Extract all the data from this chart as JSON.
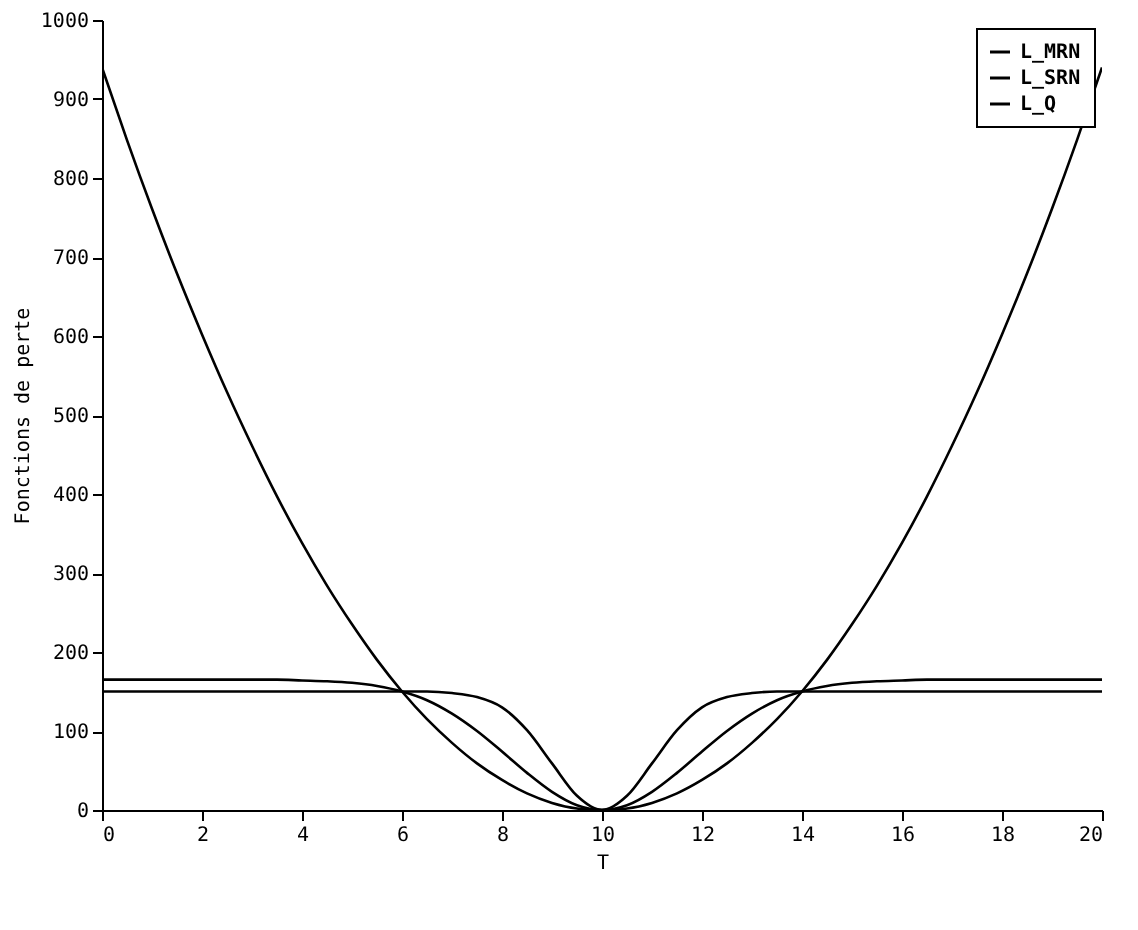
{
  "chart_data": {
    "type": "line",
    "xlabel": "T",
    "ylabel": "Fonctions de perte",
    "x": [
      0,
      0.5,
      1,
      1.5,
      2,
      2.5,
      3,
      3.5,
      4,
      4.5,
      5,
      5.5,
      6,
      6.5,
      7,
      7.5,
      8,
      8.5,
      9,
      9.5,
      10,
      10.5,
      11,
      11.5,
      12,
      12.5,
      13,
      13.5,
      14,
      14.5,
      15,
      15.5,
      16,
      16.5,
      17,
      17.5,
      18,
      18.5,
      19,
      19.5,
      20
    ],
    "series": [
      {
        "name": "L_MRN",
        "color": "#000000",
        "values": [
          150,
          150,
          150,
          150,
          150,
          150,
          150,
          150,
          150,
          150,
          150,
          150,
          150,
          150,
          148,
          143,
          130,
          101,
          59,
          18,
          0,
          18,
          59,
          101,
          130,
          143,
          148,
          150,
          150,
          150,
          150,
          150,
          150,
          150,
          150,
          150,
          150,
          150,
          150,
          150,
          150
        ]
      },
      {
        "name": "L_SRN",
        "color": "#000000",
        "values": [
          165,
          165,
          165,
          165,
          165,
          165,
          165,
          165,
          164,
          163,
          161,
          157,
          150,
          139,
          122,
          100,
          74,
          47,
          23,
          6,
          0,
          6,
          23,
          47,
          74,
          100,
          122,
          139,
          150,
          157,
          161,
          163,
          164,
          165,
          165,
          165,
          165,
          165,
          165,
          165,
          165
        ]
      },
      {
        "name": "L_Q",
        "color": "#000000",
        "values": [
          940,
          848,
          761,
          679,
          602,
          529,
          461,
          397,
          338,
          284,
          235,
          190,
          150,
          115,
          85,
          59,
          38,
          21,
          9,
          2,
          0,
          2,
          9,
          21,
          38,
          59,
          85,
          115,
          150,
          190,
          235,
          284,
          338,
          397,
          461,
          529,
          602,
          679,
          761,
          848,
          940
        ]
      }
    ],
    "xlim": [
      0,
      20
    ],
    "xticks": [
      0,
      2,
      4,
      6,
      8,
      10,
      12,
      14,
      16,
      18,
      20
    ],
    "ylim": [
      0,
      1000
    ],
    "yticks": [
      0,
      100,
      200,
      300,
      400,
      500,
      600,
      700,
      800,
      900,
      1000
    ],
    "legend": "top right",
    "grid": false,
    "marker": "none",
    "line_style": "solid"
  }
}
